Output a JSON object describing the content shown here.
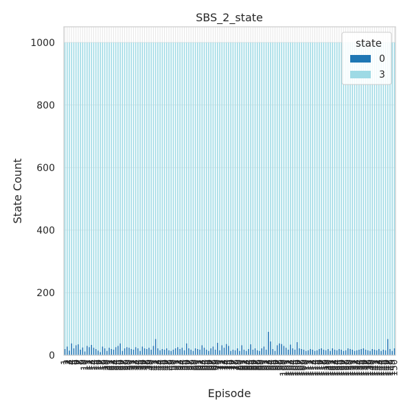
{
  "chart_data": {
    "type": "bar",
    "stacked": true,
    "title": "SBS_2_state",
    "xlabel": "Episode",
    "ylabel": "State Count",
    "ylim": [
      0,
      1050
    ],
    "yticks": [
      0,
      200,
      400,
      600,
      800,
      1000
    ],
    "grid": true,
    "legend_title": "state",
    "legend_placement": "top-right",
    "xtick_rotation": 90,
    "categories": [
      "1",
      "2",
      "3",
      "4",
      "5",
      "6",
      "7",
      "8",
      "9",
      "10",
      "11",
      "12",
      "13",
      "14",
      "15",
      "16",
      "17",
      "18",
      "19",
      "20",
      "21",
      "22",
      "23",
      "24",
      "25",
      "26",
      "27",
      "28",
      "29",
      "30",
      "31",
      "32",
      "33",
      "34",
      "35",
      "36",
      "37",
      "38",
      "39",
      "40",
      "41",
      "42",
      "43",
      "44",
      "45",
      "46",
      "47",
      "48",
      "49",
      "50",
      "51",
      "52",
      "53",
      "54",
      "55",
      "56",
      "57",
      "58",
      "59",
      "60",
      "61",
      "62",
      "63",
      "64",
      "65",
      "66",
      "67",
      "68",
      "69",
      "70",
      "71",
      "72",
      "73",
      "74",
      "75",
      "76",
      "77",
      "78",
      "79",
      "80",
      "81",
      "82",
      "83",
      "84",
      "85",
      "86",
      "87",
      "88",
      "89",
      "90",
      "91",
      "92",
      "93",
      "94",
      "95",
      "96",
      "97",
      "98",
      "99",
      "100",
      "101",
      "102",
      "103",
      "104",
      "105",
      "106",
      "107",
      "108",
      "109",
      "110",
      "111",
      "112",
      "113",
      "114",
      "115",
      "116",
      "117",
      "118",
      "119",
      "120",
      "121",
      "122",
      "123",
      "124",
      "125",
      "126",
      "127",
      "128",
      "129",
      "130",
      "131",
      "132",
      "133",
      "134",
      "135",
      "136",
      "137",
      "138",
      "139",
      "140",
      "141",
      "142",
      "143",
      "144",
      "145",
      "146",
      "147",
      "148",
      "149",
      "150"
    ],
    "series": [
      {
        "name": "0",
        "color": "#1f77b4",
        "values": [
          20,
          28,
          15,
          38,
          22,
          32,
          35,
          18,
          25,
          12,
          30,
          26,
          33,
          24,
          20,
          15,
          10,
          28,
          22,
          14,
          24,
          20,
          18,
          26,
          30,
          38,
          14,
          22,
          26,
          24,
          20,
          18,
          26,
          22,
          14,
          28,
          22,
          20,
          24,
          18,
          30,
          52,
          22,
          16,
          20,
          18,
          22,
          16,
          14,
          18,
          22,
          26,
          20,
          24,
          16,
          38,
          22,
          18,
          14,
          22,
          20,
          18,
          32,
          24,
          18,
          14,
          22,
          28,
          18,
          40,
          16,
          32,
          24,
          36,
          30,
          14,
          18,
          16,
          22,
          14,
          32,
          18,
          14,
          20,
          35,
          18,
          22,
          16,
          14,
          22,
          28,
          18,
          75,
          44,
          20,
          14,
          32,
          38,
          36,
          30,
          24,
          18,
          34,
          22,
          18,
          42,
          22,
          20,
          18,
          14,
          16,
          20,
          18,
          14,
          16,
          20,
          22,
          18,
          16,
          20,
          14,
          22,
          18,
          16,
          20,
          18,
          14,
          16,
          22,
          20,
          18,
          14,
          16,
          18,
          20,
          22,
          18,
          16,
          14,
          20,
          18,
          16,
          20,
          14,
          18,
          16,
          52,
          20,
          14,
          22
        ]
      },
      {
        "name": "3",
        "color": "#9edae5",
        "values": [
          980,
          972,
          985,
          962,
          978,
          968,
          965,
          982,
          975,
          988,
          970,
          974,
          967,
          976,
          980,
          985,
          990,
          972,
          978,
          986,
          976,
          980,
          982,
          974,
          970,
          962,
          986,
          978,
          974,
          976,
          980,
          982,
          974,
          978,
          986,
          972,
          978,
          980,
          976,
          982,
          970,
          948,
          978,
          984,
          980,
          982,
          978,
          984,
          986,
          982,
          978,
          974,
          980,
          976,
          984,
          962,
          978,
          982,
          986,
          978,
          980,
          982,
          968,
          976,
          982,
          986,
          978,
          972,
          982,
          960,
          984,
          968,
          976,
          964,
          970,
          986,
          982,
          984,
          978,
          986,
          968,
          982,
          986,
          980,
          965,
          982,
          978,
          984,
          986,
          978,
          972,
          982,
          925,
          956,
          980,
          986,
          968,
          962,
          964,
          970,
          976,
          982,
          966,
          978,
          982,
          958,
          978,
          980,
          982,
          986,
          984,
          980,
          982,
          986,
          984,
          980,
          978,
          982,
          984,
          980,
          986,
          978,
          982,
          984,
          980,
          982,
          986,
          984,
          978,
          980,
          982,
          986,
          984,
          982,
          980,
          978,
          982,
          984,
          986,
          980,
          982,
          984,
          980,
          986,
          982,
          984,
          948,
          980,
          986,
          978
        ]
      }
    ]
  }
}
